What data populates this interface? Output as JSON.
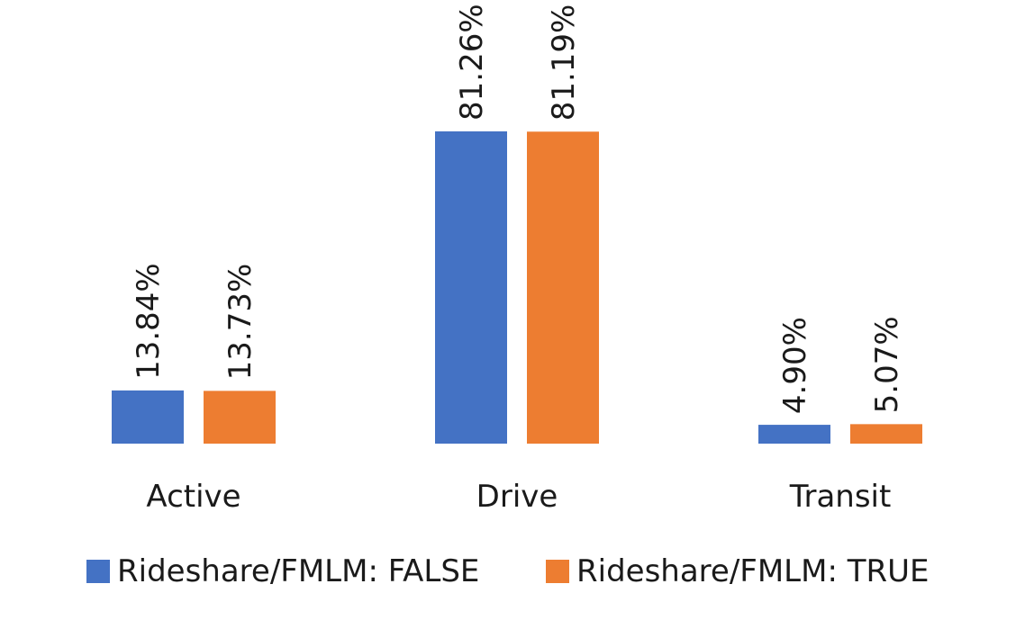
{
  "chart_data": {
    "type": "bar",
    "categories": [
      "Active",
      "Drive",
      "Transit"
    ],
    "series": [
      {
        "name": "Rideshare/FMLM: FALSE",
        "values": [
          13.84,
          81.26,
          4.9
        ],
        "labels": [
          "13.84%",
          "81.26%",
          "4.90%"
        ],
        "color": "#4472C4"
      },
      {
        "name": "Rideshare/FMLM: TRUE",
        "values": [
          13.73,
          81.19,
          5.07
        ],
        "labels": [
          "13.73%",
          "81.19%",
          "5.07%"
        ],
        "color": "#ED7D31"
      }
    ],
    "ylim": [
      0,
      81.26
    ],
    "grid": false,
    "legend": "bottom"
  }
}
